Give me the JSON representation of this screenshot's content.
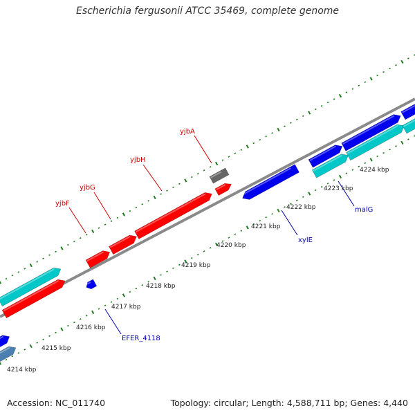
{
  "title": "Escherichia fergusonii ATCC 35469, complete genome",
  "footer": {
    "accession": "Accession: NC_011740",
    "stats": "Topology: circular; Length: 4,588,711 bp; Genes: 4,440"
  },
  "colors": {
    "backbone": "#8a8a8a",
    "ruler_dots": "#1f7a1f",
    "red_gene": "#ff0000",
    "blue_gene": "#0000ee",
    "cyan_gene": "#00c8c8",
    "gray_gene": "#666666",
    "steel_gene": "#4a7fb0",
    "label_red": "#cc0000",
    "label_blue": "#0000aa"
  },
  "ruler_labels": [
    "4214 kbp",
    "4215 kbp",
    "4216 kbp",
    "4217 kbp",
    "4218 kbp",
    "4219 kbp",
    "4220 kbp",
    "4221 kbp",
    "4222 kbp",
    "4223 kbp",
    "4224 kbp"
  ],
  "gene_labels_top": [
    "yjbF",
    "yjbG",
    "yjbH",
    "yjbA"
  ],
  "gene_labels_bottom": [
    "EFER_4118",
    "xylE",
    "malG"
  ]
}
